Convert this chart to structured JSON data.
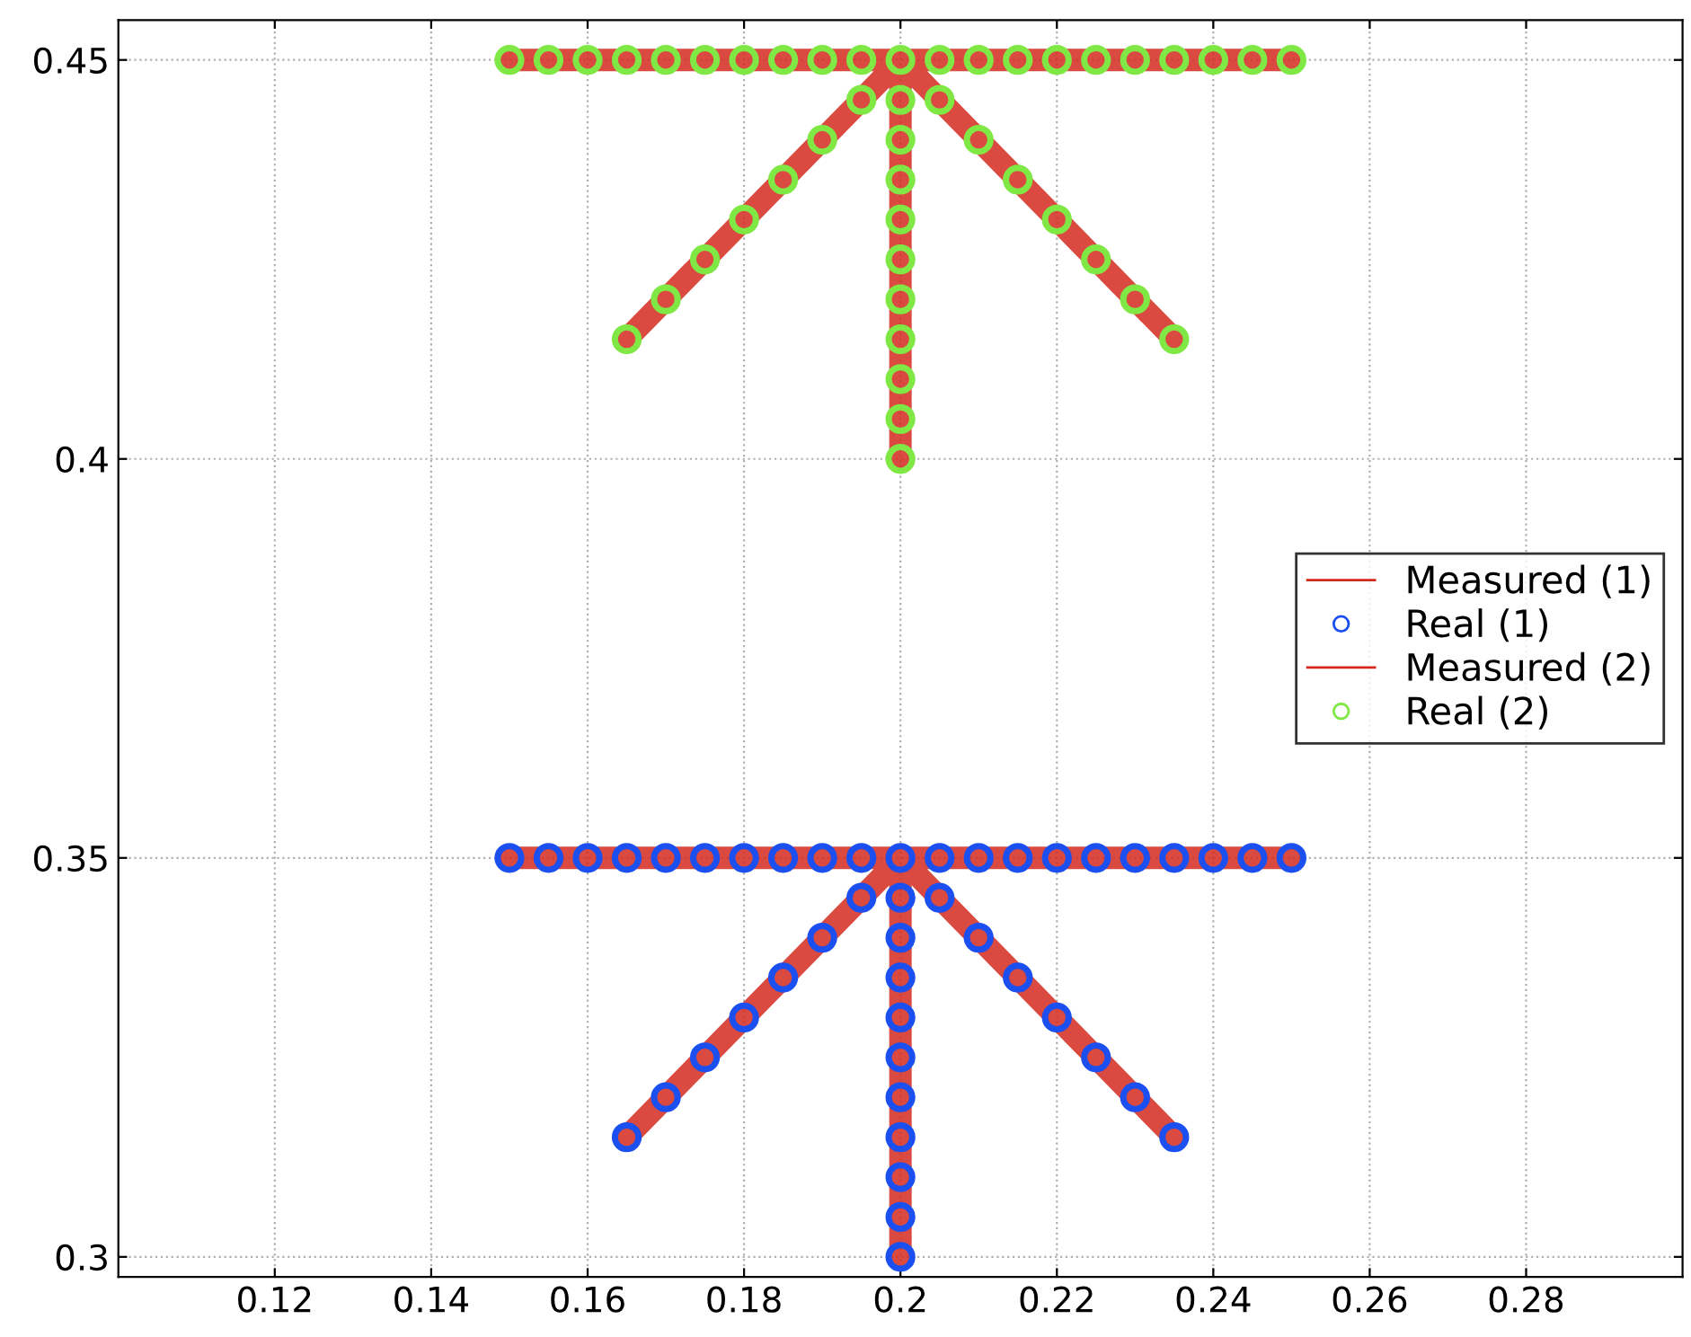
{
  "chart_data": {
    "type": "line",
    "xlim": [
      0.1,
      0.3
    ],
    "ylim": [
      0.2975,
      0.455
    ],
    "xticks": [
      0.12,
      0.14,
      0.16,
      0.18,
      0.2,
      0.22,
      0.24,
      0.26,
      0.28
    ],
    "yticks": [
      0.3,
      0.35,
      0.4,
      0.45
    ],
    "grid": true,
    "legend": "right",
    "series": [
      {
        "name": "Measured (1)",
        "color": "#d42a1e",
        "line_style": "solid",
        "marker": "none",
        "x": [
          0.15,
          0.2,
          0.165,
          0.2,
          0.2,
          0.2,
          0.235,
          0.2,
          0.25
        ],
        "values": [
          0.35,
          0.35,
          0.315,
          0.35,
          0.3,
          0.35,
          0.315,
          0.35,
          0.35
        ]
      },
      {
        "name": "Real (1)",
        "type": "scatter",
        "color": "#1c4ff0",
        "marker": "circle",
        "x": [
          0.15,
          0.155,
          0.16,
          0.165,
          0.17,
          0.175,
          0.18,
          0.185,
          0.19,
          0.195,
          0.2,
          0.205,
          0.21,
          0.215,
          0.22,
          0.225,
          0.23,
          0.235,
          0.24,
          0.245,
          0.25,
          0.195,
          0.19,
          0.185,
          0.18,
          0.175,
          0.17,
          0.165,
          0.205,
          0.21,
          0.215,
          0.22,
          0.225,
          0.23,
          0.235,
          0.2,
          0.2,
          0.2,
          0.2,
          0.2,
          0.2,
          0.2,
          0.2,
          0.2,
          0.2
        ],
        "values": [
          0.35,
          0.35,
          0.35,
          0.35,
          0.35,
          0.35,
          0.35,
          0.35,
          0.35,
          0.35,
          0.35,
          0.35,
          0.35,
          0.35,
          0.35,
          0.35,
          0.35,
          0.35,
          0.35,
          0.35,
          0.35,
          0.345,
          0.34,
          0.335,
          0.33,
          0.325,
          0.32,
          0.315,
          0.345,
          0.34,
          0.335,
          0.33,
          0.325,
          0.32,
          0.315,
          0.345,
          0.34,
          0.335,
          0.33,
          0.325,
          0.32,
          0.315,
          0.31,
          0.305,
          0.3
        ]
      },
      {
        "name": "Measured (2)",
        "color": "#d42a1e",
        "line_style": "solid",
        "marker": "none",
        "x": [
          0.15,
          0.2,
          0.165,
          0.2,
          0.2,
          0.2,
          0.235,
          0.2,
          0.25
        ],
        "values": [
          0.45,
          0.45,
          0.415,
          0.45,
          0.4,
          0.45,
          0.415,
          0.45,
          0.45
        ]
      },
      {
        "name": "Real (2)",
        "type": "scatter",
        "color": "#80e844",
        "marker": "circle",
        "x": [
          0.15,
          0.155,
          0.16,
          0.165,
          0.17,
          0.175,
          0.18,
          0.185,
          0.19,
          0.195,
          0.2,
          0.205,
          0.21,
          0.215,
          0.22,
          0.225,
          0.23,
          0.235,
          0.24,
          0.245,
          0.25,
          0.195,
          0.19,
          0.185,
          0.18,
          0.175,
          0.17,
          0.165,
          0.205,
          0.21,
          0.215,
          0.22,
          0.225,
          0.23,
          0.235,
          0.2,
          0.2,
          0.2,
          0.2,
          0.2,
          0.2,
          0.2,
          0.2,
          0.2,
          0.2
        ],
        "values": [
          0.45,
          0.45,
          0.45,
          0.45,
          0.45,
          0.45,
          0.45,
          0.45,
          0.45,
          0.45,
          0.45,
          0.45,
          0.45,
          0.45,
          0.45,
          0.45,
          0.45,
          0.45,
          0.45,
          0.45,
          0.45,
          0.445,
          0.44,
          0.435,
          0.43,
          0.425,
          0.42,
          0.415,
          0.445,
          0.44,
          0.435,
          0.43,
          0.425,
          0.42,
          0.415,
          0.445,
          0.44,
          0.435,
          0.43,
          0.425,
          0.42,
          0.415,
          0.41,
          0.405,
          0.4
        ]
      }
    ]
  }
}
